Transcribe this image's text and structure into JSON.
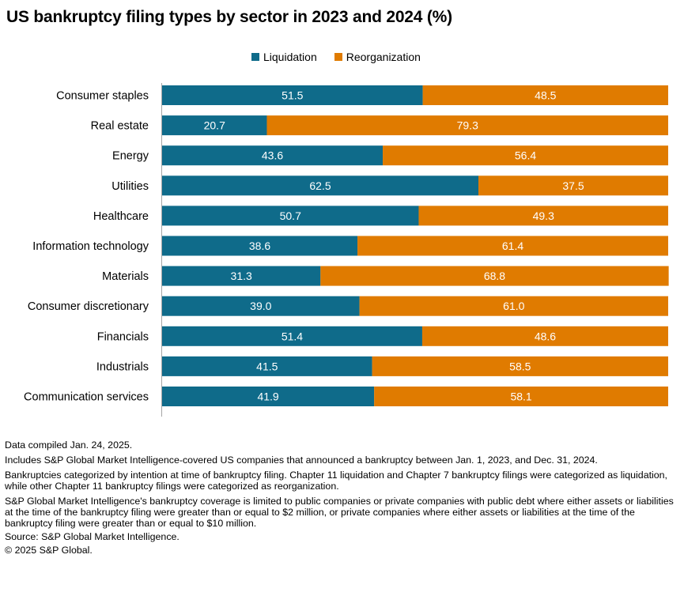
{
  "title": "US bankruptcy filing types by sector in 2023 and 2024 (%)",
  "legend": {
    "liquidation": "Liquidation",
    "reorganization": "Reorganization"
  },
  "colors": {
    "liquidation": "#0f6b8a",
    "reorganization": "#e07b00"
  },
  "chart_data": {
    "type": "bar",
    "orientation": "horizontal",
    "stacked": true,
    "categories": [
      "Consumer staples",
      "Real estate",
      "Energy",
      "Utilities",
      "Healthcare",
      "Information technology",
      "Materials",
      "Consumer discretionary",
      "Financials",
      "Industrials",
      "Communication services"
    ],
    "series": [
      {
        "name": "Liquidation",
        "values": [
          51.5,
          20.7,
          43.6,
          62.5,
          50.7,
          38.6,
          31.3,
          39.0,
          51.4,
          41.5,
          41.9
        ],
        "labels": [
          "51.5",
          "20.7",
          "43.6",
          "62.5",
          "50.7",
          "38.6",
          "31.3",
          "39.0",
          "51.4",
          "41.5",
          "41.9"
        ]
      },
      {
        "name": "Reorganization",
        "values": [
          48.5,
          79.3,
          56.4,
          37.5,
          49.3,
          61.4,
          68.8,
          61.0,
          48.6,
          58.5,
          58.1
        ],
        "labels": [
          "48.5",
          "79.3",
          "56.4",
          "37.5",
          "49.3",
          "61.4",
          "68.8",
          "61.0",
          "48.6",
          "58.5",
          "58.1"
        ]
      }
    ],
    "xlim": [
      0,
      100
    ],
    "grid": false,
    "legend_position": "top-center"
  },
  "notes": [
    "Data compiled Jan. 24, 2025.",
    "Includes S&P Global Market Intelligence-covered US companies that announced a bankruptcy between Jan. 1, 2023, and Dec. 31, 2024.",
    "Bankruptcies categorized by intention at time of bankruptcy filing. Chapter 11 liquidation and Chapter 7 bankruptcy filings were categorized as liquidation, while other Chapter 11 bankruptcy filings were categorized as reorganization.",
    "S&P Global Market Intelligence's bankruptcy coverage is limited to public companies or private companies with public debt where either assets or liabilities at the time of the bankruptcy filing were greater than or equal to $2 million, or private companies where either assets or liabilities at the time of the bankruptcy filing were greater than or equal to $10 million.",
    "Source: S&P Global Market Intelligence.",
    "© 2025 S&P Global."
  ]
}
